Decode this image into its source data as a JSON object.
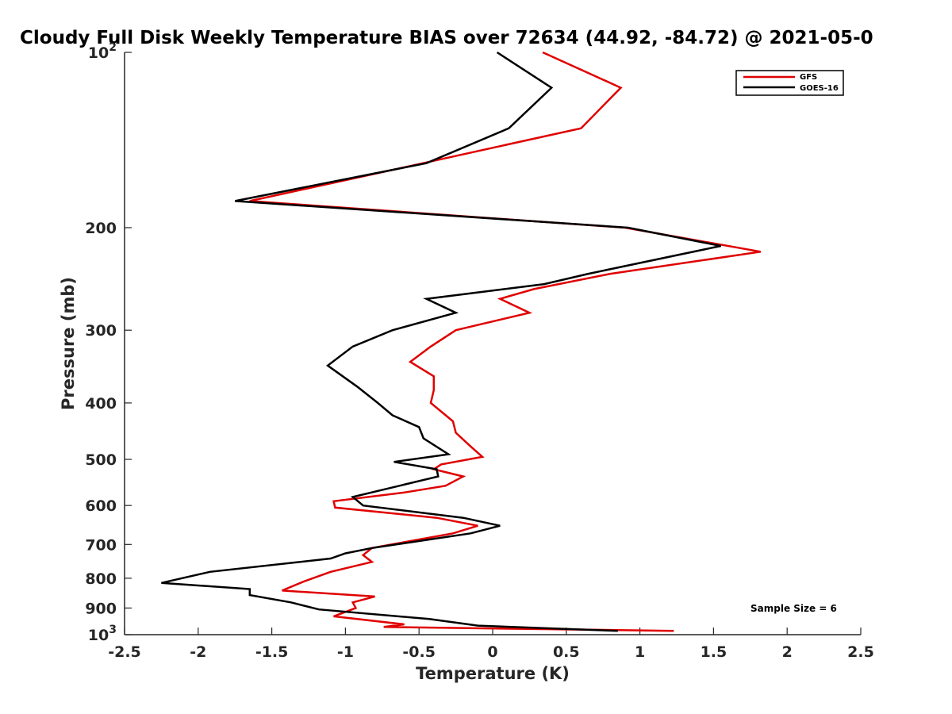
{
  "chart_data": {
    "type": "line",
    "title": "Cloudy Full Disk Weekly Temperature BIAS over 72634 (44.92, -84.72) @ 2021-05-0",
    "xlabel": "Temperature (K)",
    "ylabel": "Pressure (mb)",
    "xlim": [
      -2.5,
      2.5
    ],
    "ylim": [
      100,
      1000
    ],
    "yscale": "log",
    "yreversed": true,
    "xticks": [
      -2.5,
      -2,
      -1.5,
      -1,
      -0.5,
      0,
      0.5,
      1,
      1.5,
      2,
      2.5
    ],
    "xtick_labels": [
      "-2.5",
      "-2",
      "-1.5",
      "-1",
      "-0.5",
      "0",
      "0.5",
      "1",
      "1.5",
      "2",
      "2.5"
    ],
    "yticks": [
      100,
      200,
      300,
      400,
      500,
      600,
      700,
      800,
      900,
      1000
    ],
    "ytick_labels": [
      {
        "base": "10",
        "exp": "2"
      },
      {
        "base": "200",
        "exp": ""
      },
      {
        "base": "300",
        "exp": ""
      },
      {
        "base": "400",
        "exp": ""
      },
      {
        "base": "500",
        "exp": ""
      },
      {
        "base": "600",
        "exp": ""
      },
      {
        "base": "700",
        "exp": ""
      },
      {
        "base": "800",
        "exp": ""
      },
      {
        "base": "900",
        "exp": ""
      },
      {
        "base": "10",
        "exp": "3"
      }
    ],
    "grid": false,
    "legend_position": "top-right",
    "annotation": "Sample Size = 6",
    "series": [
      {
        "name": "GFS",
        "color": "#e00000",
        "points": [
          [
            0.34,
            100
          ],
          [
            0.87,
            115
          ],
          [
            0.6,
            135
          ],
          [
            -0.72,
            160
          ],
          [
            -1.65,
            180
          ],
          [
            0.9,
            200
          ],
          [
            1.82,
            220
          ],
          [
            0.8,
            240
          ],
          [
            0.28,
            255
          ],
          [
            0.05,
            265
          ],
          [
            0.25,
            280
          ],
          [
            -0.25,
            300
          ],
          [
            -0.42,
            320
          ],
          [
            -0.56,
            340
          ],
          [
            -0.4,
            360
          ],
          [
            -0.4,
            380
          ],
          [
            -0.42,
            400
          ],
          [
            -0.27,
            430
          ],
          [
            -0.25,
            450
          ],
          [
            -0.15,
            475
          ],
          [
            -0.07,
            495
          ],
          [
            -0.35,
            510
          ],
          [
            -0.4,
            520
          ],
          [
            -0.2,
            535
          ],
          [
            -0.32,
            555
          ],
          [
            -0.6,
            570
          ],
          [
            -1.08,
            590
          ],
          [
            -1.07,
            605
          ],
          [
            -0.38,
            630
          ],
          [
            -0.1,
            650
          ],
          [
            -0.27,
            670
          ],
          [
            -0.82,
            710
          ],
          [
            -0.88,
            730
          ],
          [
            -0.82,
            750
          ],
          [
            -1.1,
            780
          ],
          [
            -1.28,
            810
          ],
          [
            -1.43,
            840
          ],
          [
            -0.8,
            860
          ],
          [
            -0.95,
            880
          ],
          [
            -0.93,
            900
          ],
          [
            -1.08,
            930
          ],
          [
            -0.6,
            960
          ],
          [
            -0.74,
            970
          ],
          [
            1.23,
            985
          ]
        ]
      },
      {
        "name": "GOES-16",
        "color": "#000000",
        "points": [
          [
            0.03,
            100
          ],
          [
            0.4,
            115
          ],
          [
            0.11,
            135
          ],
          [
            -0.45,
            155
          ],
          [
            -1.75,
            180
          ],
          [
            0.92,
            200
          ],
          [
            1.55,
            215
          ],
          [
            0.65,
            240
          ],
          [
            0.35,
            250
          ],
          [
            -0.45,
            265
          ],
          [
            -0.25,
            280
          ],
          [
            -0.68,
            300
          ],
          [
            -0.95,
            320
          ],
          [
            -1.12,
            345
          ],
          [
            -0.92,
            375
          ],
          [
            -0.78,
            400
          ],
          [
            -0.68,
            420
          ],
          [
            -0.5,
            440
          ],
          [
            -0.47,
            460
          ],
          [
            -0.3,
            490
          ],
          [
            -0.67,
            505
          ],
          [
            -0.38,
            520
          ],
          [
            -0.37,
            535
          ],
          [
            -0.95,
            580
          ],
          [
            -0.88,
            600
          ],
          [
            -0.2,
            630
          ],
          [
            0.05,
            650
          ],
          [
            -0.15,
            670
          ],
          [
            -0.82,
            710
          ],
          [
            -1.0,
            725
          ],
          [
            -1.1,
            740
          ],
          [
            -1.92,
            780
          ],
          [
            -2.25,
            815
          ],
          [
            -1.65,
            835
          ],
          [
            -1.65,
            855
          ],
          [
            -1.37,
            880
          ],
          [
            -1.18,
            905
          ],
          [
            -0.43,
            940
          ],
          [
            -0.1,
            965
          ],
          [
            0.85,
            985
          ]
        ]
      }
    ]
  }
}
